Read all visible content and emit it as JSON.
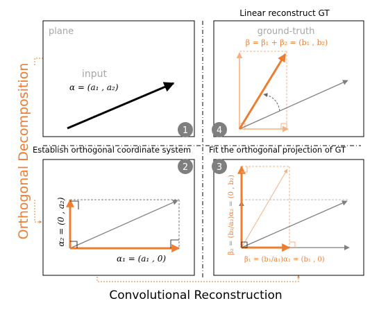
{
  "colors": {
    "orange": "#ed7d31",
    "light_orange": "#f4b183",
    "gray": "#7f7f7f",
    "light_gray": "#a6a6a6",
    "badge": "#7f7f7f",
    "black": "#000000"
  },
  "side_label": "Orthogonal Decomposition",
  "bottom_label": "Convolutional Reconstruction",
  "panels": {
    "p1": {
      "badge": "1",
      "corner_label": "plane",
      "vector_name": "input",
      "formula": "α = (a₁ , a₂)"
    },
    "p2": {
      "badge": "2",
      "title": "Establish orthogonal coordinate system",
      "alpha1": "α₁ = (a₁ , 0)",
      "alpha2": "α₂ = (0 , a₂)"
    },
    "p3": {
      "badge": "3",
      "title": "Fit the orthogonal projection of GT",
      "beta1": "β₁ = (b₁/a₁)α₁ = (b₁ , 0)",
      "beta2": "β₂ = (b₂/a₂)α₂ = (0 , b₂)"
    },
    "p4": {
      "badge": "4",
      "title": "Linear reconstruct  GT",
      "corner_label": "ground-truth",
      "formula": "β = β₁ + β₂ = (b₁ , b₂)"
    }
  }
}
